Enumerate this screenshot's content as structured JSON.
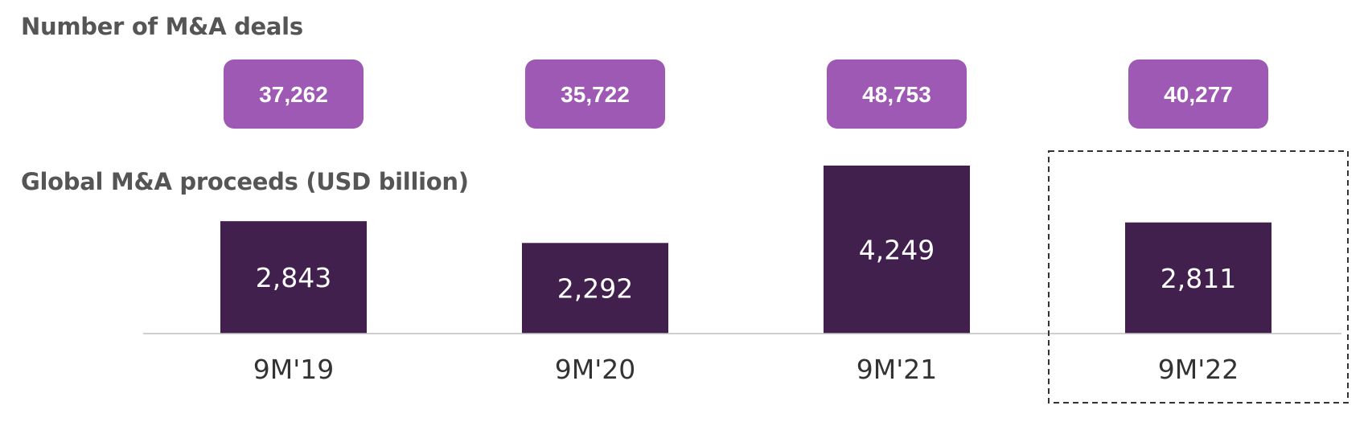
{
  "deals_section": {
    "title": "Number of M&A deals"
  },
  "proceeds_section": {
    "title": "Global M&A proceeds (USD billion)"
  },
  "colors": {
    "bar": "#42204E",
    "badge": "#9E59B5",
    "title_text": "#555555",
    "axis_label_text": "#333333",
    "bar_label_text": "#ffffff",
    "baseline": "#BFBFBF",
    "highlight_border": "#333333"
  },
  "chart_data": {
    "type": "bar",
    "categories": [
      "9M'19",
      "9M'20",
      "9M'21",
      "9M'22"
    ],
    "values": [
      2843,
      2292,
      4249,
      2811
    ],
    "value_labels": [
      "2,843",
      "2,292",
      "4,249",
      "2,811"
    ],
    "deal_counts": [
      37262,
      35722,
      48753,
      40277
    ],
    "deal_count_labels": [
      "37,262",
      "35,722",
      "48,753",
      "40,277"
    ],
    "highlighted_category": "9M'22",
    "ylim": [
      0,
      4249
    ],
    "grid": false,
    "legend": "none"
  }
}
